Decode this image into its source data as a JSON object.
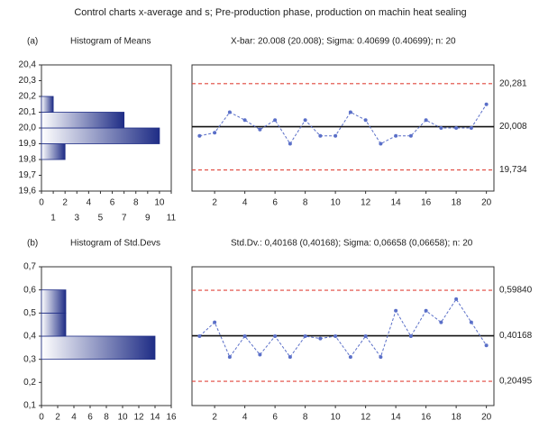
{
  "title": "Control charts x-average and s; Pre-production phase, production on machin heat sealing",
  "chart_data": [
    {
      "type": "histogram",
      "panel": "(a)",
      "title": "Histogram of Means",
      "color": "#1f2d86",
      "bins": [
        19.8,
        19.9,
        20.0,
        20.1,
        20.2
      ],
      "values": [
        2,
        10,
        7,
        1
      ],
      "xlim": [
        0,
        11
      ],
      "xticks": [
        0,
        1,
        2,
        3,
        4,
        5,
        6,
        7,
        8,
        9,
        10,
        11
      ],
      "ylim": [
        19.6,
        20.4
      ],
      "yticks": [
        {
          "value": 19.6,
          "label": "19,6"
        },
        {
          "value": 19.7,
          "label": "19,7"
        },
        {
          "value": 19.8,
          "label": "19,8"
        },
        {
          "value": 19.9,
          "label": "19,9"
        },
        {
          "value": 20.0,
          "label": "20,0"
        },
        {
          "value": 20.1,
          "label": "20,1"
        },
        {
          "value": 20.2,
          "label": "20,2"
        },
        {
          "value": 20.3,
          "label": "20,3"
        },
        {
          "value": 20.4,
          "label": "20,4"
        }
      ]
    },
    {
      "type": "line",
      "title": "X-bar: 20.008 (20.008); Sigma: 0.40699 (0.40699); n: 20",
      "color": "#5a6fc8",
      "x": [
        1,
        2,
        3,
        4,
        5,
        6,
        7,
        8,
        9,
        10,
        11,
        12,
        13,
        14,
        15,
        16,
        17,
        18,
        19,
        20
      ],
      "values": [
        19.95,
        19.97,
        20.1,
        20.05,
        19.99,
        20.05,
        19.9,
        20.05,
        19.95,
        19.95,
        20.1,
        20.05,
        19.9,
        19.95,
        19.95,
        20.05,
        20.0,
        20.0,
        20.0,
        20.15
      ],
      "xlim": [
        0.5,
        20.5
      ],
      "xticks": [
        2,
        4,
        6,
        8,
        10,
        12,
        14,
        16,
        18,
        20
      ],
      "ylim": [
        19.6,
        20.4
      ],
      "yticks": [
        {
          "value": 20.281,
          "label": "20,281"
        },
        {
          "value": 20.008,
          "label": "20,008"
        },
        {
          "value": 19.734,
          "label": "19,734"
        }
      ],
      "limit_colors": [
        "#e0463c",
        "#111111",
        "#e0463c"
      ],
      "limit_styles": [
        "dashed",
        "solid",
        "dashed"
      ]
    },
    {
      "type": "histogram",
      "panel": "(b)",
      "title": "Histogram of Std.Devs",
      "color": "#1f2d86",
      "bins": [
        0.3,
        0.4,
        0.5,
        0.6
      ],
      "values": [
        14,
        3,
        3
      ],
      "xlim": [
        0,
        16
      ],
      "xticks": [
        0,
        2,
        4,
        6,
        8,
        10,
        12,
        14,
        16
      ],
      "ylim": [
        0.1,
        0.7
      ],
      "yticks": [
        {
          "value": 0.1,
          "label": "0,1"
        },
        {
          "value": 0.2,
          "label": "0,2"
        },
        {
          "value": 0.3,
          "label": "0,3"
        },
        {
          "value": 0.4,
          "label": "0,4"
        },
        {
          "value": 0.5,
          "label": "0,5"
        },
        {
          "value": 0.6,
          "label": "0,6"
        },
        {
          "value": 0.7,
          "label": "0,7"
        }
      ]
    },
    {
      "type": "line",
      "title": "Std.Dv.: 0,40168 (0,40168); Sigma: 0,06658 (0,06658); n: 20",
      "color": "#5a6fc8",
      "x": [
        1,
        2,
        3,
        4,
        5,
        6,
        7,
        8,
        9,
        10,
        11,
        12,
        13,
        14,
        15,
        16,
        17,
        18,
        19,
        20
      ],
      "values": [
        0.4,
        0.46,
        0.31,
        0.4,
        0.32,
        0.4,
        0.31,
        0.4,
        0.39,
        0.4,
        0.31,
        0.4,
        0.31,
        0.51,
        0.4,
        0.51,
        0.46,
        0.56,
        0.46,
        0.36
      ],
      "xlim": [
        0.5,
        20.5
      ],
      "xticks": [
        2,
        4,
        6,
        8,
        10,
        12,
        14,
        16,
        18,
        20
      ],
      "ylim": [
        0.1,
        0.7
      ],
      "yticks": [
        {
          "value": 0.5984,
          "label": "0,59840"
        },
        {
          "value": 0.40168,
          "label": "0,40168"
        },
        {
          "value": 0.20495,
          "label": "0,20495"
        }
      ],
      "limit_colors": [
        "#e0463c",
        "#111111",
        "#e0463c"
      ],
      "limit_styles": [
        "dashed",
        "solid",
        "dashed"
      ]
    }
  ]
}
